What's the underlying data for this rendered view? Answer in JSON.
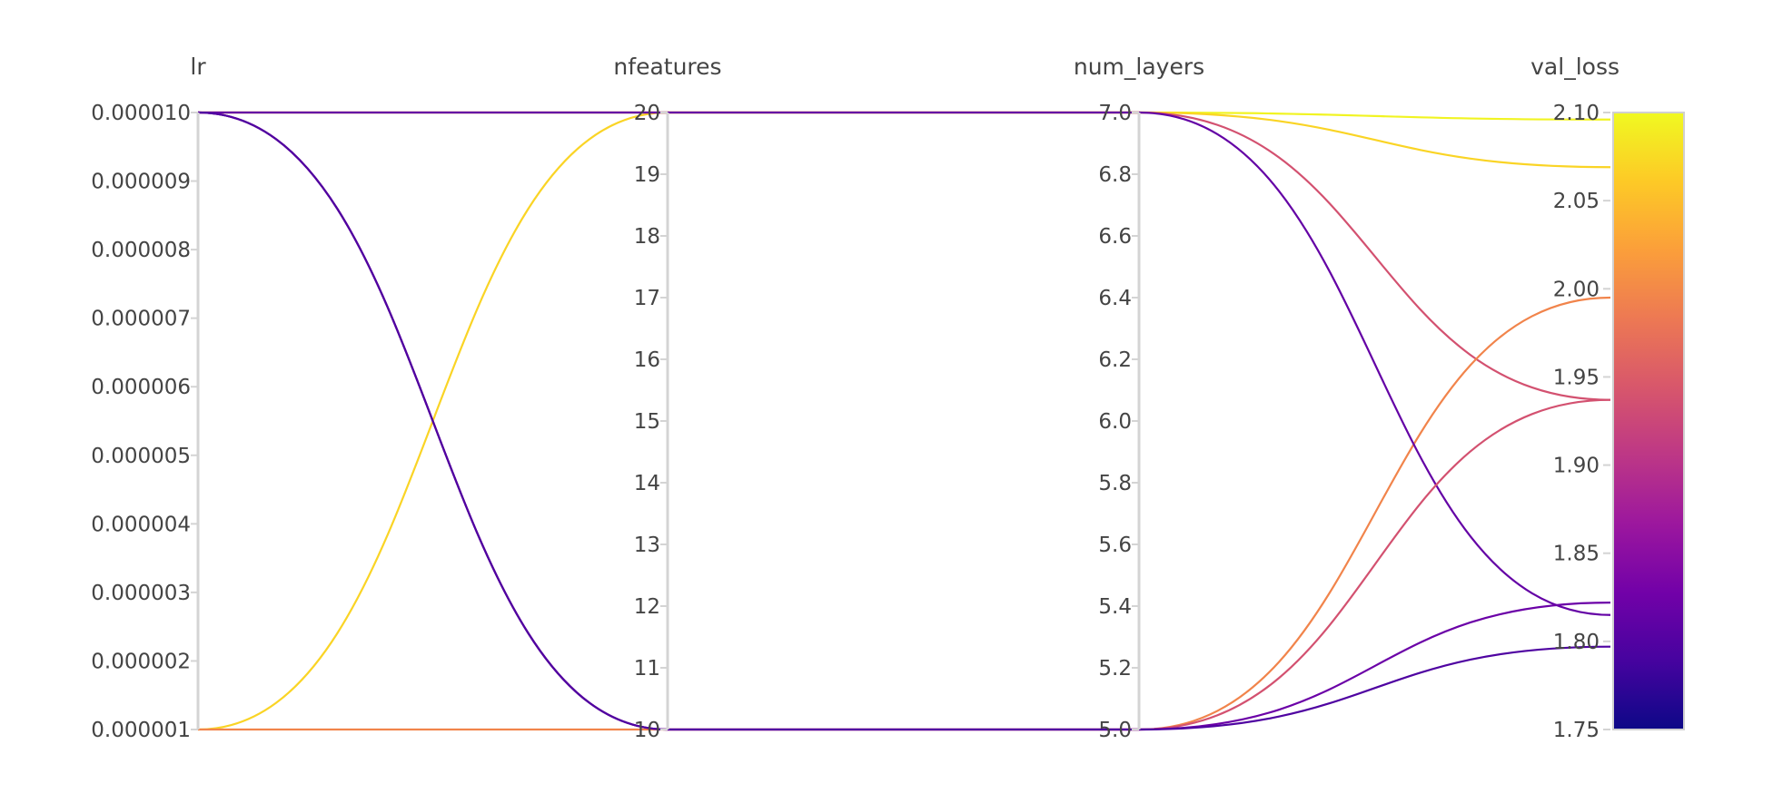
{
  "chart_data": {
    "type": "parallel_coordinates",
    "dimensions": [
      {
        "name": "lr",
        "range": [
          1e-06,
          1e-05
        ],
        "ticks": [
          "0.000001",
          "0.000002",
          "0.000003",
          "0.000004",
          "0.000005",
          "0.000006",
          "0.000007",
          "0.000008",
          "0.000009",
          "0.000010"
        ]
      },
      {
        "name": "nfeatures",
        "range": [
          10,
          20
        ],
        "ticks": [
          "10",
          "11",
          "12",
          "13",
          "14",
          "15",
          "16",
          "17",
          "18",
          "19",
          "20"
        ]
      },
      {
        "name": "num_layers",
        "range": [
          5.0,
          7.0
        ],
        "ticks": [
          "5.0",
          "5.2",
          "5.4",
          "5.6",
          "5.8",
          "6.0",
          "6.2",
          "6.4",
          "6.6",
          "6.8",
          "7.0"
        ]
      },
      {
        "name": "val_loss",
        "range": [
          1.75,
          2.1
        ],
        "ticks": [
          "1.75",
          "1.80",
          "1.85",
          "1.90",
          "1.95",
          "2.00",
          "2.05",
          "2.10"
        ]
      }
    ],
    "colorscale": {
      "name": "plasma",
      "target": "val_loss",
      "range": [
        1.75,
        2.1
      ]
    },
    "runs": [
      {
        "lr": 1e-05,
        "nfeatures": 20,
        "num_layers": 7,
        "val_loss": 2.096
      },
      {
        "lr": 1e-06,
        "nfeatures": 20,
        "num_layers": 7,
        "val_loss": 2.069
      },
      {
        "lr": 1e-05,
        "nfeatures": 20,
        "num_layers": 7,
        "val_loss": 1.937
      },
      {
        "lr": 1e-06,
        "nfeatures": 10,
        "num_layers": 5,
        "val_loss": 1.995
      },
      {
        "lr": 1e-05,
        "nfeatures": 20,
        "num_layers": 7,
        "val_loss": 1.815
      },
      {
        "lr": 1e-05,
        "nfeatures": 10,
        "num_layers": 5,
        "val_loss": 1.937
      },
      {
        "lr": 1e-05,
        "nfeatures": 10,
        "num_layers": 5,
        "val_loss": 1.822
      },
      {
        "lr": 1e-05,
        "nfeatures": 10,
        "num_layers": 5,
        "val_loss": 1.797
      }
    ]
  }
}
